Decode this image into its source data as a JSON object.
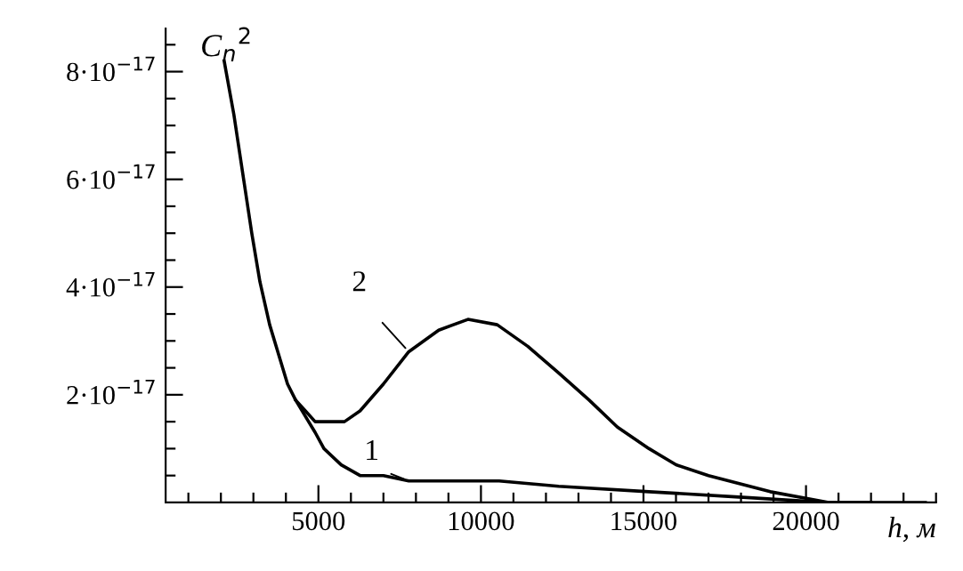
{
  "chart_data": {
    "type": "line",
    "xlabel": "h, м",
    "ylabel": "C$_{n}$$^{2}$",
    "xlim": [
      300,
      24000
    ],
    "ylim": [
      0,
      8.8e-17
    ],
    "xticks": [
      {
        "value": 1000,
        "label": null
      },
      {
        "value": 2000,
        "label": null
      },
      {
        "value": 3000,
        "label": null
      },
      {
        "value": 4000,
        "label": null
      },
      5000,
      {
        "value": 6000,
        "label": null
      },
      {
        "value": 7000,
        "label": null
      },
      {
        "value": 8000,
        "label": null
      },
      {
        "value": 9000,
        "label": null
      },
      10000,
      {
        "value": 11000,
        "label": null
      },
      {
        "value": 12000,
        "label": null
      },
      {
        "value": 13000,
        "label": null
      },
      {
        "value": 14000,
        "label": null
      },
      15000,
      {
        "value": 16000,
        "label": null
      },
      {
        "value": 17000,
        "label": null
      },
      {
        "value": 18000,
        "label": null
      },
      {
        "value": 19000,
        "label": null
      },
      20000,
      {
        "value": 21000,
        "label": null
      },
      {
        "value": 22000,
        "label": null
      },
      {
        "value": 23000,
        "label": null
      },
      {
        "value": 24000,
        "label": null
      }
    ],
    "yticks": [
      {
        "value": 5e-18,
        "label": null
      },
      {
        "value": 1e-17,
        "label": null
      },
      {
        "value": 1.5e-17,
        "label": null
      },
      {
        "value": 2e-17,
        "label": "2·10$^{−17}$"
      },
      {
        "value": 2.5e-17,
        "label": null
      },
      {
        "value": 3e-17,
        "label": null
      },
      {
        "value": 3.5e-17,
        "label": null
      },
      {
        "value": 4e-17,
        "label": "4·10$^{−17}$"
      },
      {
        "value": 4.5e-17,
        "label": null
      },
      {
        "value": 5e-17,
        "label": null
      },
      {
        "value": 5.5e-17,
        "label": null
      },
      {
        "value": 6e-17,
        "label": "6·10$^{−17}$"
      },
      {
        "value": 6.5e-17,
        "label": null
      },
      {
        "value": 7e-17,
        "label": null
      },
      {
        "value": 7.5e-17,
        "label": null
      },
      {
        "value": 8e-17,
        "label": "8·10$^{−17}$"
      },
      {
        "value": 8.5e-17,
        "label": null
      }
    ],
    "grid": false,
    "legend": false,
    "marker": "none",
    "line_style": "solid",
    "series": [
      {
        "name": "1",
        "color": "#000000",
        "x": [
          2100,
          2400,
          2700,
          2950,
          3200,
          3500,
          3800,
          4050,
          4300,
          4600,
          4900,
          5170,
          5700,
          6280,
          7000,
          7780,
          9600,
          10560,
          12390,
          15170,
          17940,
          20700,
          23670
        ],
        "values": [
          8.2e-17,
          7.2e-17,
          6e-17,
          5e-17,
          4.1e-17,
          3.3e-17,
          2.7e-17,
          2.2e-17,
          1.9e-17,
          1.6e-17,
          1.3e-17,
          1e-17,
          7e-18,
          5e-18,
          5e-18,
          4e-18,
          4e-18,
          4e-18,
          3e-18,
          2e-18,
          1e-18,
          0.0,
          0
        ]
      },
      {
        "name": "2",
        "color": "#000000",
        "x": [
          4300,
          4600,
          4900,
          5280,
          5800,
          6280,
          7000,
          7780,
          8700,
          9600,
          10500,
          11440,
          12400,
          13330,
          14200,
          15170,
          16000,
          17000,
          18900,
          20700,
          22000
        ],
        "values": [
          1.9e-17,
          1.7e-17,
          1.5e-17,
          1.5e-17,
          1.5e-17,
          1.7e-17,
          2.2e-17,
          2.8e-17,
          3.2e-17,
          3.4e-17,
          3.3e-17,
          2.9e-17,
          2.4e-17,
          1.9e-17,
          1.4e-17,
          1e-17,
          7e-18,
          5e-18,
          2e-18,
          0.0,
          0.0
        ]
      }
    ]
  }
}
